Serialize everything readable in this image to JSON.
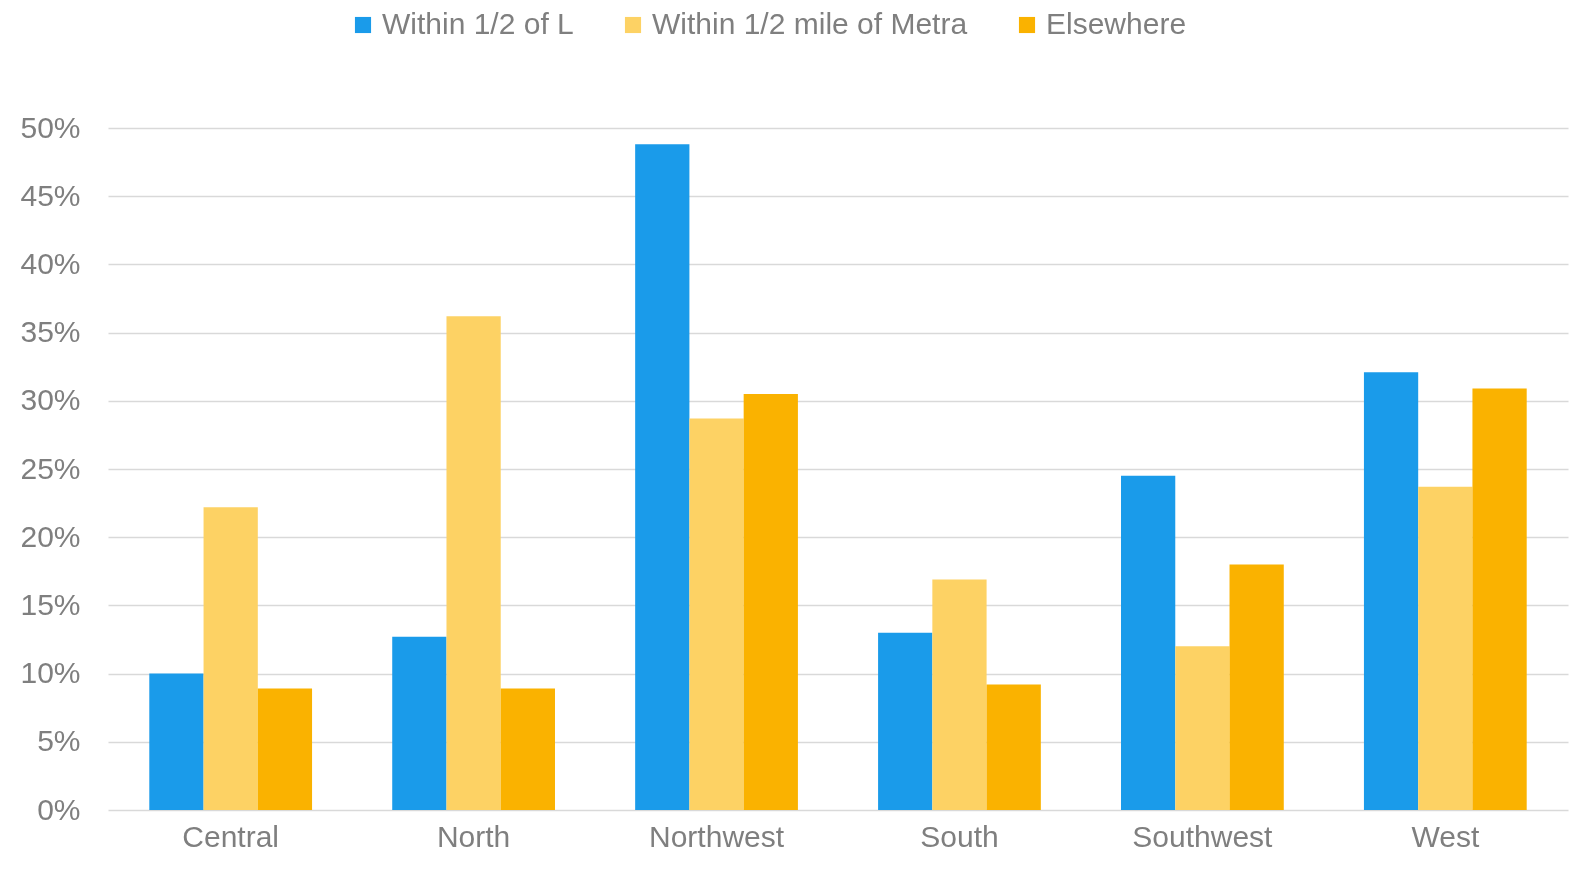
{
  "chart_data": {
    "type": "bar",
    "categories": [
      "Central",
      "North",
      "Northwest",
      "South",
      "Southwest",
      "West"
    ],
    "series": [
      {
        "name": "Within 1/2 of L",
        "color": "#1a9bea",
        "values": [
          10.0,
          12.7,
          48.8,
          13.0,
          24.5,
          32.1
        ]
      },
      {
        "name": "Within 1/2 mile of Metra",
        "color": "#fdd264",
        "values": [
          22.2,
          36.2,
          28.7,
          16.9,
          12.0,
          23.7
        ]
      },
      {
        "name": "Elsewhere",
        "color": "#fab200",
        "values": [
          8.9,
          8.9,
          30.5,
          9.2,
          18.0,
          30.9
        ]
      }
    ],
    "ylim": [
      0,
      50
    ],
    "yticks": [
      {
        "value": 0,
        "label": "0%"
      },
      {
        "value": 5,
        "label": "5%"
      },
      {
        "value": 10,
        "label": "10%"
      },
      {
        "value": 15,
        "label": "15%"
      },
      {
        "value": 20,
        "label": "20%"
      },
      {
        "value": 25,
        "label": "25%"
      },
      {
        "value": 30,
        "label": "30%"
      },
      {
        "value": 35,
        "label": "35%"
      },
      {
        "value": 40,
        "label": "40%"
      },
      {
        "value": 45,
        "label": "45%"
      },
      {
        "value": 50,
        "label": "50%"
      }
    ],
    "grid": "y",
    "legend": "top"
  }
}
